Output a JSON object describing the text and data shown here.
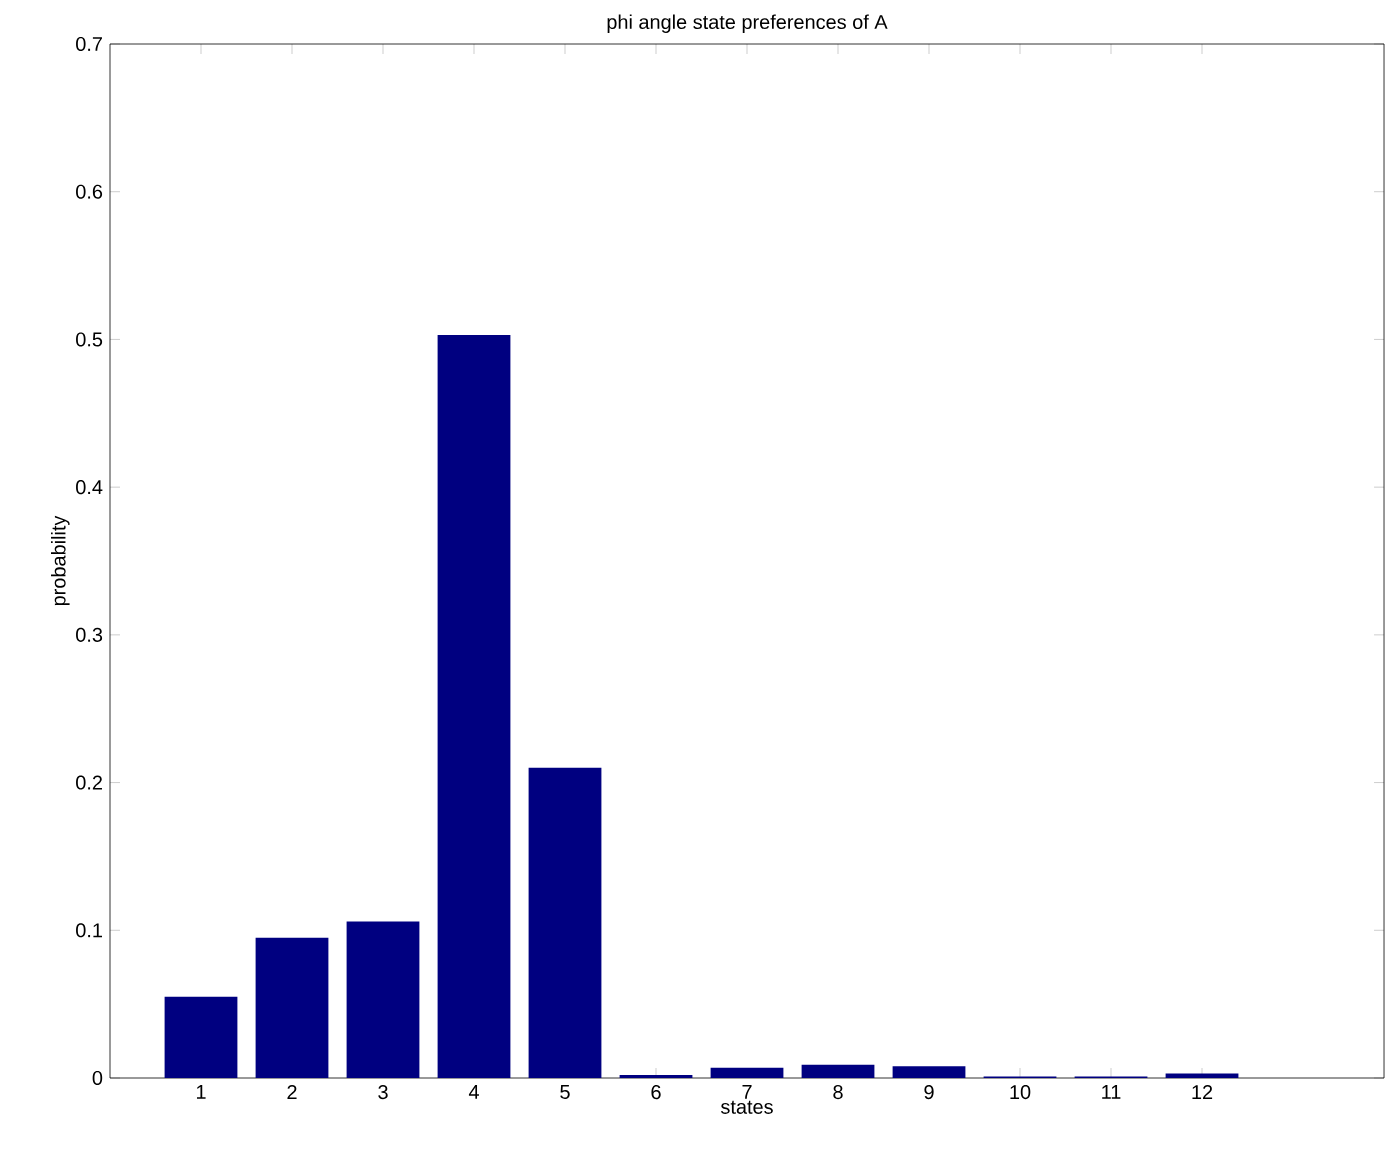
{
  "chart_data": {
    "type": "bar",
    "title": "phi angle state preferences of A",
    "xlabel": "states",
    "ylabel": "probability",
    "x": [
      1,
      2,
      3,
      4,
      5,
      6,
      7,
      8,
      9,
      10,
      11,
      12
    ],
    "values": [
      0.055,
      0.095,
      0.106,
      0.503,
      0.21,
      0.002,
      0.007,
      0.009,
      0.008,
      0.001,
      0.001,
      0.003
    ],
    "color": "#000080",
    "xlim": [
      0,
      14
    ],
    "xticks": [
      1,
      2,
      3,
      4,
      5,
      6,
      7,
      8,
      9,
      10,
      11,
      12
    ],
    "ylim": [
      0,
      0.7
    ],
    "yticks": [
      0,
      0.1,
      0.2,
      0.3,
      0.4,
      0.5,
      0.6,
      0.7
    ],
    "grid": false
  }
}
